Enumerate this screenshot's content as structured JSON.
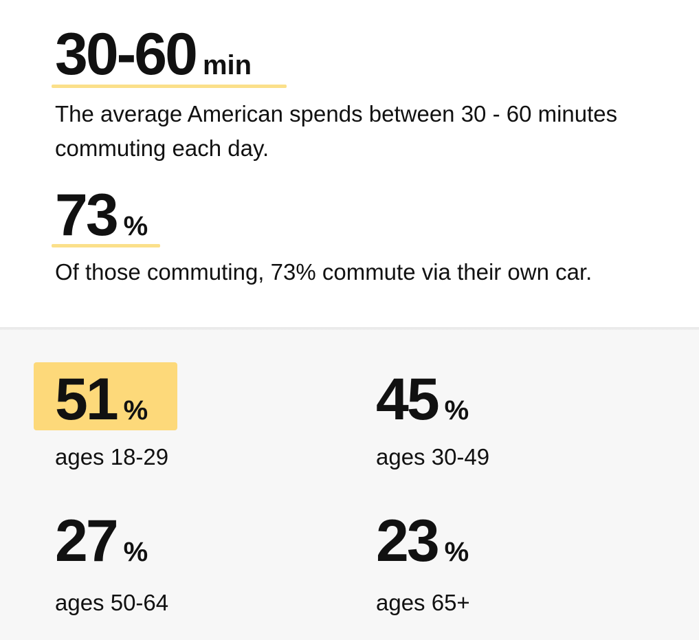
{
  "commute_time": {
    "value": "30-60",
    "unit": "min",
    "description": "The average American spends between 30 - 60 minutes commuting each day."
  },
  "car_commute": {
    "value": "73",
    "unit": "%",
    "description": "Of those commuting, 73% commute via their own car."
  },
  "age_stats": [
    {
      "value": "51",
      "unit": "%",
      "label": "ages 18-29",
      "highlighted": true
    },
    {
      "value": "45",
      "unit": "%",
      "label": "ages 30-49",
      "highlighted": false
    },
    {
      "value": "27",
      "unit": "%",
      "label": "ages 50-64",
      "highlighted": false
    },
    {
      "value": "23",
      "unit": "%",
      "label": "ages 65+",
      "highlighted": false
    }
  ],
  "colors": {
    "accent": "#fbe08a",
    "highlight": "#fdd97a",
    "panel_background": "#f7f7f7"
  }
}
